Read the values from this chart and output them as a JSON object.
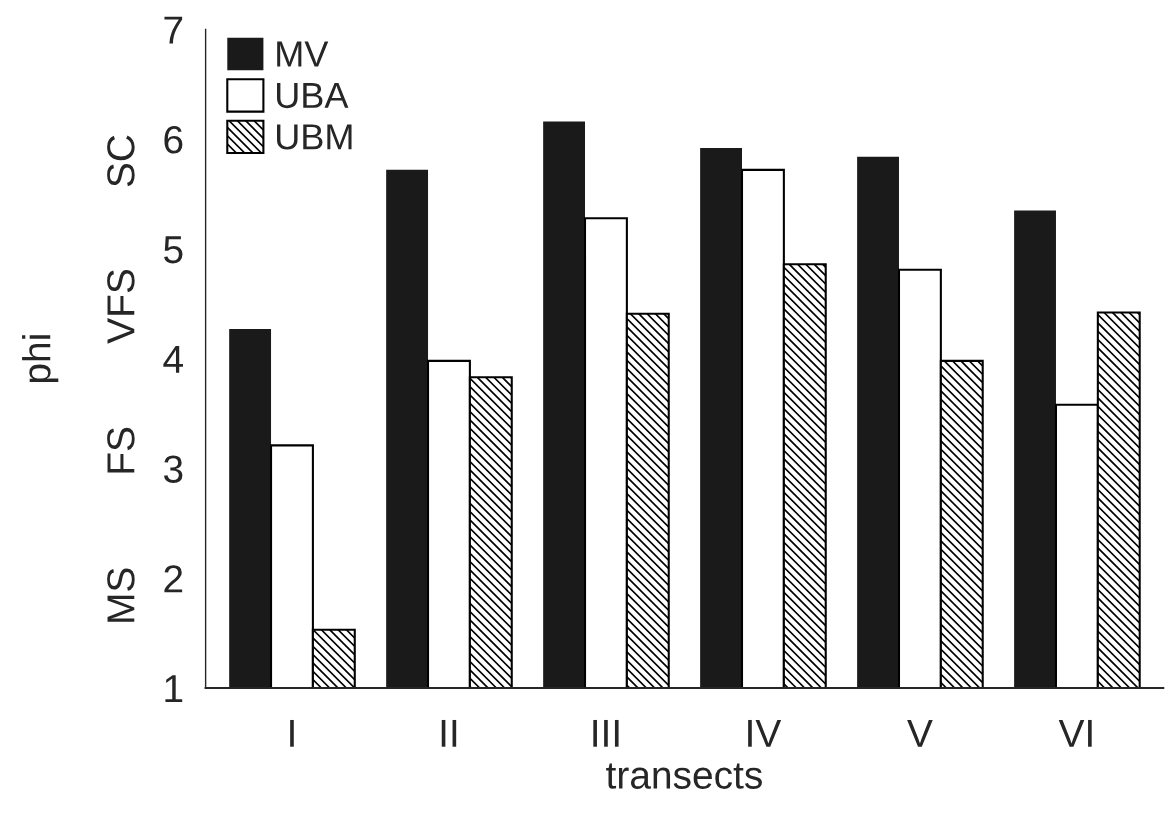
{
  "chart_data": {
    "type": "bar",
    "xlabel": "transects",
    "ylabel": "phi",
    "categories": [
      "I",
      "II",
      "III",
      "IV",
      "V",
      "VI"
    ],
    "series": [
      {
        "name": "MV",
        "color": "#1a1a1a",
        "values": [
          4.27,
          5.72,
          6.16,
          5.92,
          5.84,
          5.35
        ]
      },
      {
        "name": "UBA",
        "color": "#ffffff",
        "values": [
          3.21,
          3.98,
          5.28,
          5.72,
          4.81,
          3.58
        ]
      },
      {
        "name": "UBM",
        "color": "#000000",
        "values": [
          1.53,
          3.83,
          4.41,
          4.86,
          3.98,
          4.42
        ]
      }
    ],
    "ylim": [
      1,
      7
    ],
    "yticks": [
      1,
      2,
      3,
      4,
      5,
      6,
      7
    ],
    "annotations": [
      "MS",
      "FS",
      "VFS",
      "SC"
    ],
    "legend": "top left",
    "grid": false
  }
}
